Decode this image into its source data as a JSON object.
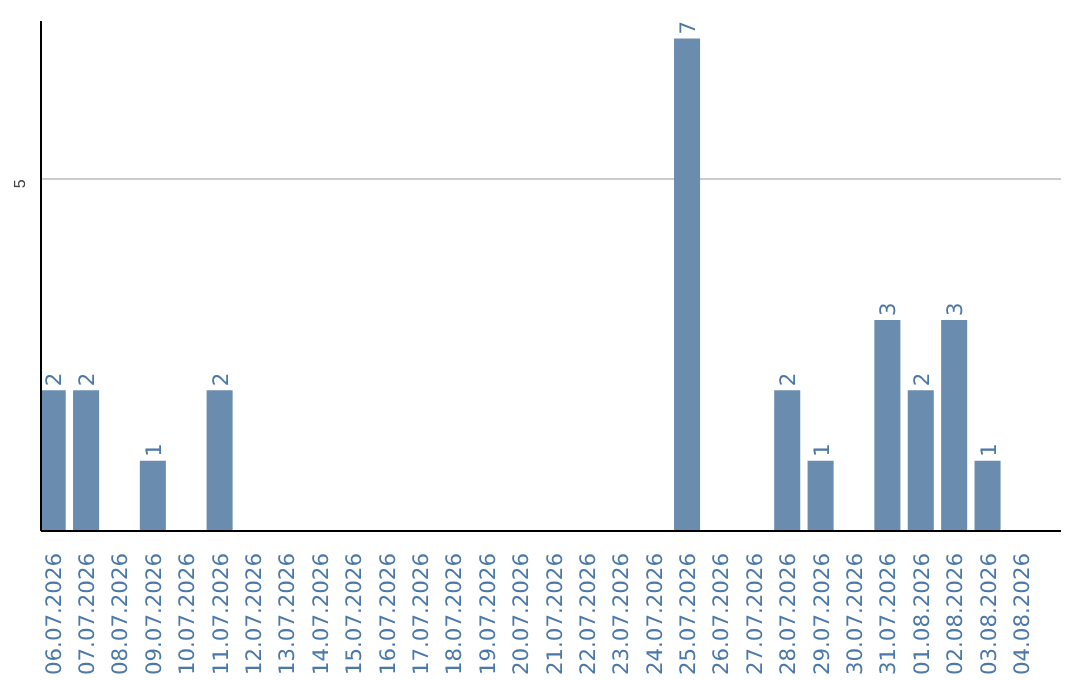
{
  "chart_data": {
    "type": "bar",
    "categories": [
      "06.07.2026",
      "07.07.2026",
      "08.07.2026",
      "09.07.2026",
      "10.07.2026",
      "11.07.2026",
      "12.07.2026",
      "13.07.2026",
      "14.07.2026",
      "15.07.2026",
      "16.07.2026",
      "17.07.2026",
      "18.07.2026",
      "19.07.2026",
      "20.07.2026",
      "21.07.2026",
      "22.07.2026",
      "23.07.2026",
      "24.07.2026",
      "25.07.2026",
      "26.07.2026",
      "27.07.2026",
      "28.07.2026",
      "29.07.2026",
      "30.07.2026",
      "31.07.2026",
      "01.08.2026",
      "02.08.2026",
      "03.08.2026",
      "04.08.2026"
    ],
    "values": [
      2,
      2,
      0,
      1,
      0,
      2,
      0,
      0,
      0,
      0,
      0,
      0,
      0,
      0,
      0,
      0,
      0,
      0,
      0,
      7,
      0,
      0,
      2,
      1,
      0,
      3,
      2,
      3,
      1,
      0
    ],
    "value_labels": [
      "2",
      "2",
      null,
      "1",
      null,
      "2",
      null,
      null,
      null,
      null,
      null,
      null,
      null,
      null,
      null,
      null,
      null,
      null,
      null,
      "7",
      null,
      null,
      "2",
      "1",
      null,
      "3",
      "2",
      "3",
      "1",
      null
    ],
    "color": "#6a8caf",
    "ylim": [
      0,
      7.25
    ],
    "yticks": [
      5
    ],
    "grid": "y"
  }
}
